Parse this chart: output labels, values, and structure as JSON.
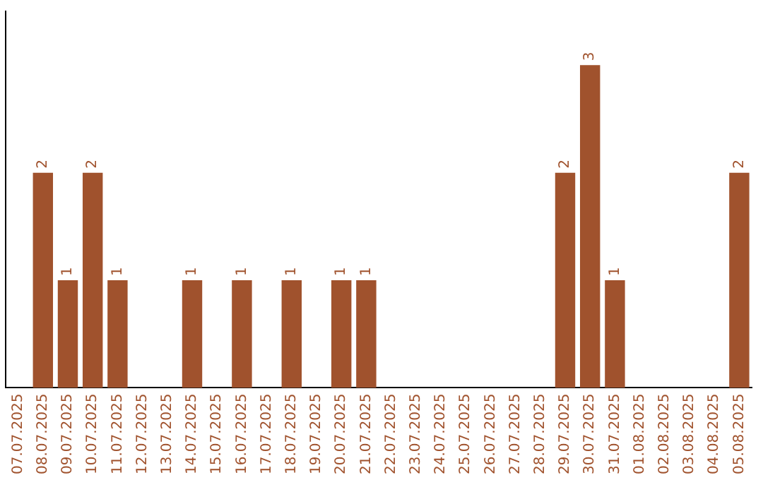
{
  "chart_data": {
    "type": "bar",
    "categories": [
      "07.07.2025",
      "08.07.2025",
      "09.07.2025",
      "10.07.2025",
      "11.07.2025",
      "12.07.2025",
      "13.07.2025",
      "14.07.2025",
      "15.07.2025",
      "16.07.2025",
      "17.07.2025",
      "18.07.2025",
      "19.07.2025",
      "20.07.2025",
      "21.07.2025",
      "22.07.2025",
      "23.07.2025",
      "24.07.2025",
      "25.07.2025",
      "26.07.2025",
      "27.07.2025",
      "28.07.2025",
      "29.07.2025",
      "30.07.2025",
      "31.07.2025",
      "01.08.2025",
      "02.08.2025",
      "03.08.2025",
      "04.08.2025",
      "05.08.2025"
    ],
    "values": [
      0,
      2,
      1,
      2,
      1,
      0,
      0,
      1,
      0,
      1,
      0,
      1,
      0,
      1,
      1,
      0,
      0,
      0,
      0,
      0,
      0,
      0,
      2,
      3,
      1,
      0,
      0,
      0,
      0,
      2
    ],
    "value_labels": [
      null,
      "2",
      "1",
      "2",
      "1",
      null,
      null,
      "1",
      null,
      "1",
      null,
      "1",
      null,
      "1",
      "1",
      null,
      null,
      null,
      null,
      null,
      null,
      null,
      "2",
      "3",
      "1",
      null,
      null,
      null,
      null,
      "2"
    ],
    "color": "#a0522d",
    "tick_labels": "x",
    "grid": false,
    "legend": false
  }
}
